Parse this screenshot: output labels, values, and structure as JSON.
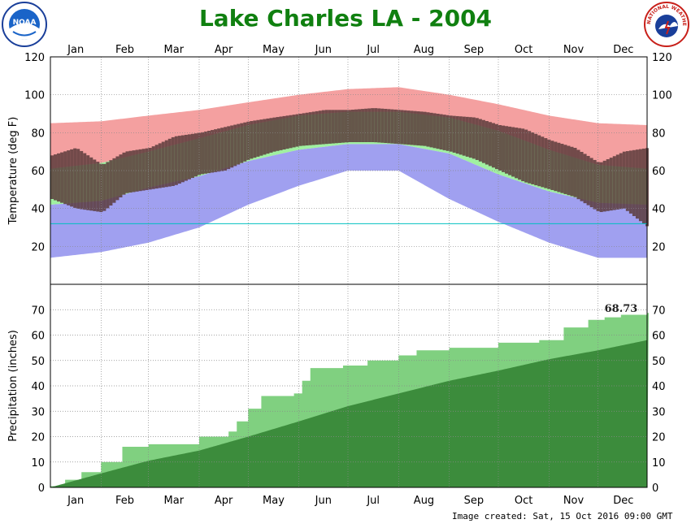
{
  "title": "Lake Charles LA - 2004",
  "footer": "Image created: Sat, 15 Oct 2016 09:00 GMT",
  "logos": {
    "left": "NOAA",
    "right_text": "NATIONAL WEATHER SERVICE"
  },
  "colors": {
    "title": "#108010",
    "record_high": "#f4a0a0",
    "normal_range": "#a0f0a0",
    "record_low": "#a0a0f0",
    "actual_range": "#5a3b3b",
    "freeze_line": "#00c0c0",
    "precip_actual": "#80d080",
    "precip_normal": "#3c8c3c"
  },
  "chart_data": [
    {
      "type": "area",
      "panel": "temperature",
      "ylabel": "Temperature (deg F)",
      "ylim": [
        0,
        120
      ],
      "yticks": [
        20,
        40,
        60,
        80,
        100,
        120
      ],
      "months": [
        "Jan",
        "Feb",
        "Mar",
        "Apr",
        "May",
        "Jun",
        "Jul",
        "Aug",
        "Sep",
        "Oct",
        "Nov",
        "Dec"
      ],
      "grid": true,
      "freeze_line": 32,
      "series": [
        {
          "key": "record_high",
          "x": [
            1,
            32,
            61,
            92,
            122,
            153,
            183,
            214,
            245,
            275,
            306,
            336,
            366
          ],
          "values": [
            85,
            86,
            89,
            92,
            96,
            100,
            103,
            104,
            100,
            95,
            89,
            85,
            84
          ]
        },
        {
          "key": "normal_high",
          "x": [
            1,
            32,
            61,
            92,
            122,
            153,
            183,
            214,
            245,
            275,
            306,
            336,
            366
          ],
          "values": [
            61,
            64,
            70,
            77,
            84,
            89,
            91,
            91,
            88,
            81,
            71,
            63,
            61
          ]
        },
        {
          "key": "normal_low",
          "x": [
            1,
            32,
            61,
            92,
            122,
            153,
            183,
            214,
            245,
            275,
            306,
            336,
            366
          ],
          "values": [
            42,
            44,
            51,
            57,
            65,
            71,
            74,
            74,
            69,
            58,
            49,
            43,
            42
          ]
        },
        {
          "key": "record_low",
          "x": [
            1,
            32,
            61,
            92,
            122,
            153,
            183,
            214,
            245,
            275,
            306,
            336,
            366
          ],
          "values": [
            14,
            17,
            22,
            30,
            42,
            52,
            60,
            60,
            45,
            33,
            22,
            14,
            14
          ]
        },
        {
          "key": "actual_high",
          "x": [
            1,
            16,
            32,
            46,
            61,
            76,
            92,
            107,
            122,
            137,
            153,
            168,
            183,
            198,
            214,
            229,
            245,
            260,
            275,
            290,
            306,
            321,
            336,
            351,
            366
          ],
          "values": [
            68,
            72,
            63,
            70,
            72,
            78,
            80,
            83,
            86,
            88,
            90,
            92,
            92,
            93,
            92,
            91,
            89,
            88,
            84,
            82,
            76,
            72,
            64,
            70,
            72
          ]
        },
        {
          "key": "actual_low",
          "x": [
            1,
            16,
            32,
            46,
            61,
            76,
            92,
            107,
            122,
            137,
            153,
            168,
            183,
            198,
            214,
            229,
            245,
            260,
            275,
            290,
            306,
            321,
            336,
            351,
            366
          ],
          "values": [
            45,
            40,
            38,
            48,
            50,
            52,
            58,
            60,
            66,
            70,
            73,
            74,
            75,
            75,
            74,
            73,
            70,
            66,
            60,
            54,
            50,
            46,
            38,
            40,
            30
          ]
        }
      ]
    },
    {
      "type": "area",
      "panel": "precipitation",
      "ylabel": "Precipitation (inches)",
      "ylim": [
        0,
        80
      ],
      "yticks": [
        0,
        10,
        20,
        30,
        40,
        50,
        60,
        70
      ],
      "annotation": "68.73",
      "grid": true,
      "series": [
        {
          "key": "actual_cumulative",
          "x": [
            1,
            10,
            20,
            32,
            45,
            61,
            75,
            92,
            100,
            110,
            115,
            122,
            130,
            140,
            150,
            155,
            160,
            170,
            180,
            195,
            214,
            225,
            245,
            255,
            275,
            290,
            300,
            315,
            330,
            340,
            350,
            366
          ],
          "values": [
            0.5,
            3,
            6,
            10,
            16,
            17,
            17,
            20,
            20,
            22,
            26,
            31,
            36,
            36,
            37,
            42,
            47,
            47,
            48,
            50,
            52,
            54,
            55,
            55,
            57,
            57,
            58,
            63,
            66,
            67,
            68,
            68.73
          ]
        },
        {
          "key": "normal_cumulative",
          "x": [
            1,
            32,
            61,
            92,
            122,
            153,
            183,
            214,
            245,
            275,
            306,
            336,
            366
          ],
          "values": [
            0,
            5.5,
            10.5,
            14.5,
            20,
            26,
            32,
            37,
            42,
            46,
            50.5,
            54,
            58
          ]
        }
      ]
    }
  ]
}
